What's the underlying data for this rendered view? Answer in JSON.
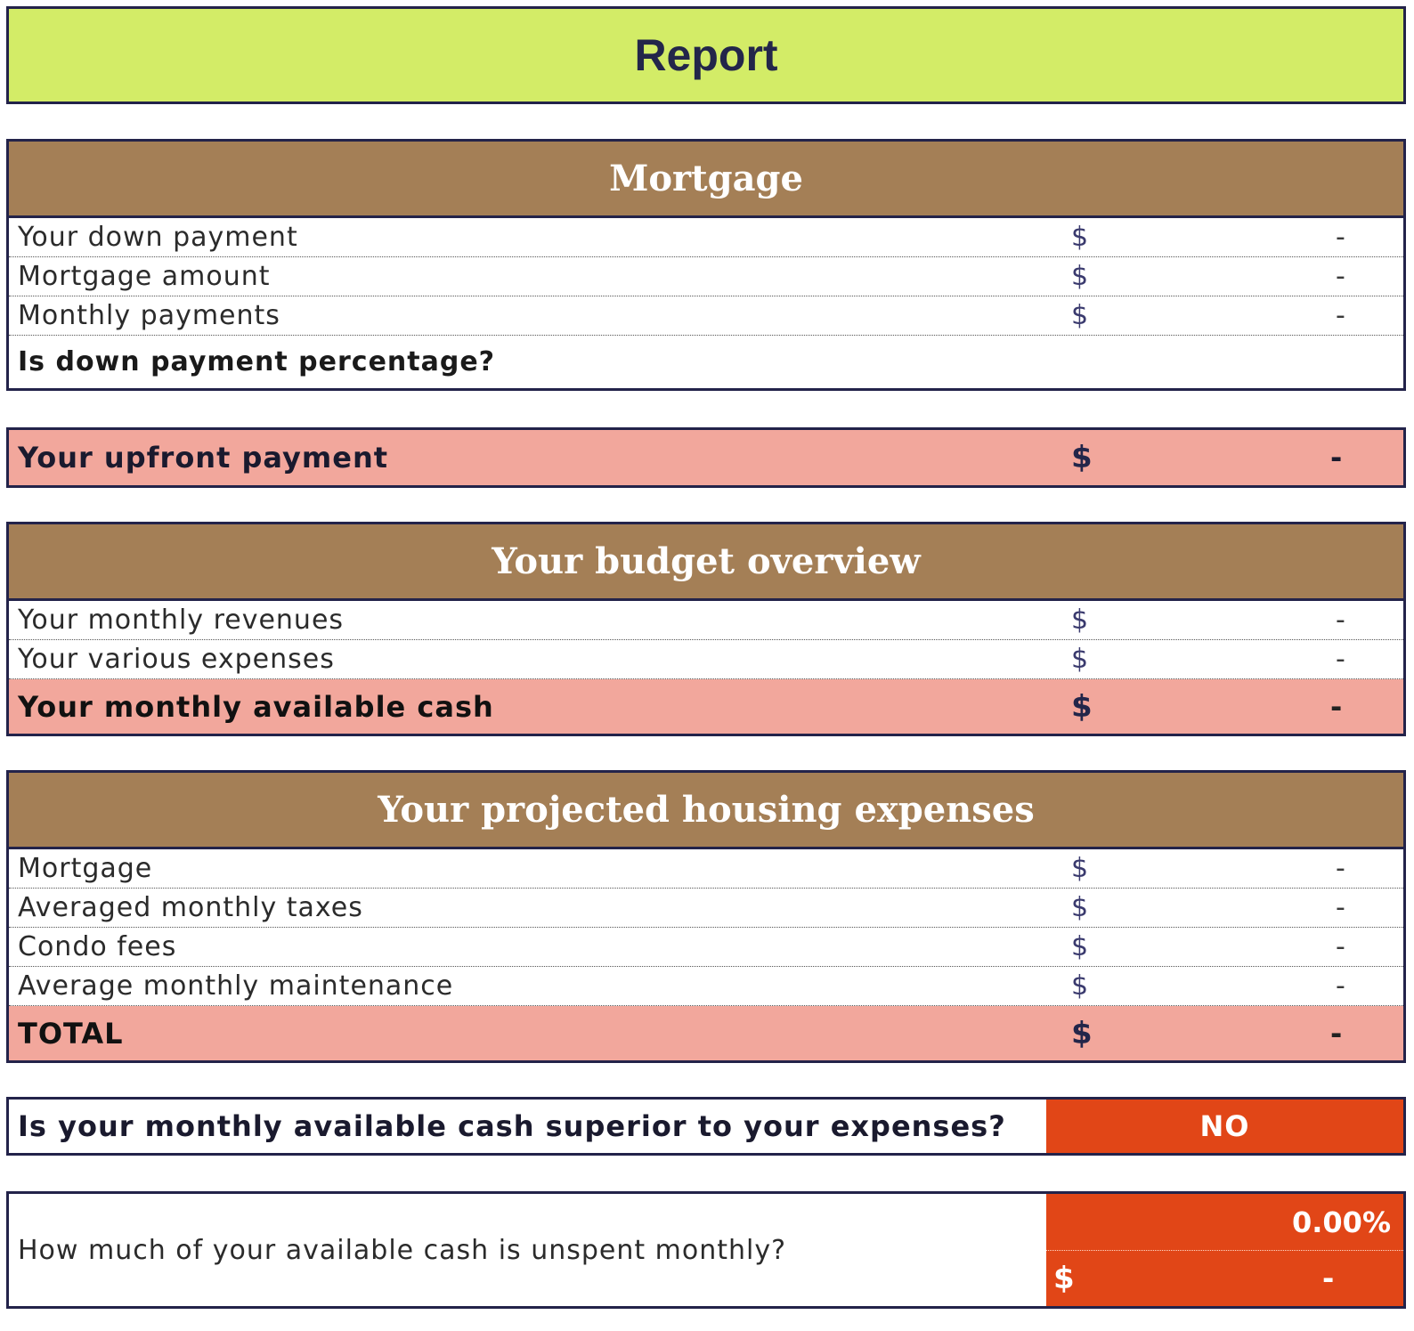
{
  "report": {
    "title": "Report"
  },
  "mortgage": {
    "title": "Mortgage",
    "rows": [
      {
        "label": "Your down payment",
        "currency": "$",
        "value": "-"
      },
      {
        "label": "Mortgage amount",
        "currency": "$",
        "value": "-"
      },
      {
        "label": "Monthly payments",
        "currency": "$",
        "value": "-"
      }
    ],
    "question": "Is down payment percentage?"
  },
  "upfront": {
    "label": "Your upfront payment",
    "currency": "$",
    "value": "-"
  },
  "budget": {
    "title": "Your budget overview",
    "rows": [
      {
        "label": "Your monthly revenues",
        "currency": "$",
        "value": "-"
      },
      {
        "label": "Your various expenses",
        "currency": "$",
        "value": "-"
      }
    ],
    "total": {
      "label": "Your monthly available cash",
      "currency": "$",
      "value": "-"
    }
  },
  "housing": {
    "title": "Your projected housing expenses",
    "rows": [
      {
        "label": "Mortgage",
        "currency": "$",
        "value": "-"
      },
      {
        "label": "Averaged monthly taxes",
        "currency": "$",
        "value": "-"
      },
      {
        "label": "Condo fees",
        "currency": "$",
        "value": "-"
      },
      {
        "label": "Average monthly maintenance",
        "currency": "$",
        "value": "-"
      }
    ],
    "total": {
      "label": "TOTAL",
      "currency": "$",
      "value": "-"
    }
  },
  "comparison": {
    "question": "Is your monthly available cash superior to your expenses?",
    "answer": "NO"
  },
  "unspent": {
    "question": "How much of your available cash is unspent monthly?",
    "percent": "0.00%",
    "currency": "$",
    "value": "-"
  },
  "colors": {
    "title_bg": "#d3ec67",
    "header_bg": "#a47f56",
    "highlight_bg": "#f2a79c",
    "alert_bg": "#e14617",
    "border": "#23234a"
  }
}
